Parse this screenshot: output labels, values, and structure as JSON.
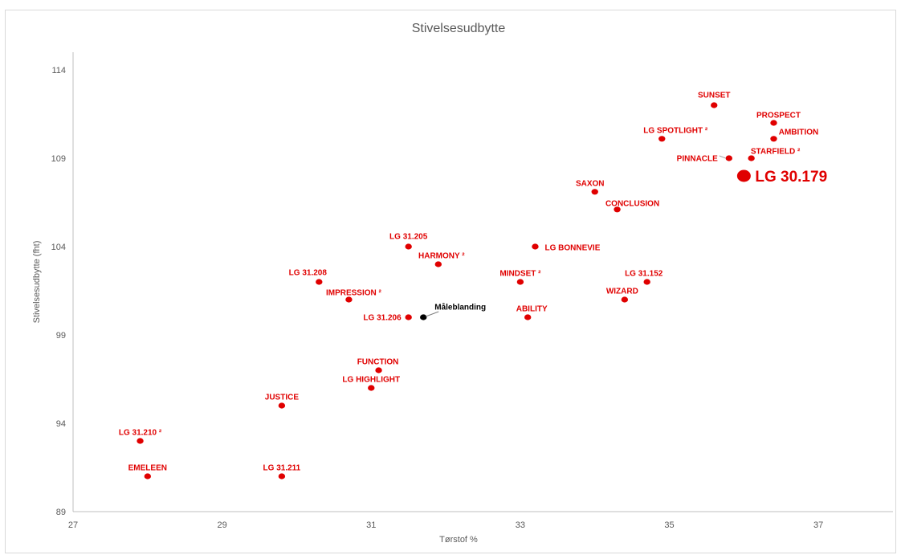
{
  "chart_data": {
    "type": "scatter",
    "title": "Stivelsesudbytte",
    "xlabel": "Tørstof %",
    "ylabel": "Stivelsesudbytte (fht)",
    "xlim": [
      27,
      38
    ],
    "ylim": [
      89,
      115
    ],
    "xticks": [
      "27",
      "29",
      "31",
      "33",
      "35",
      "37"
    ],
    "yticks": [
      "89",
      "94",
      "99",
      "104",
      "109",
      "114"
    ],
    "grid": false,
    "colors": {
      "default": "#e00000",
      "reference": "#000000",
      "highlight": "#e00000"
    },
    "points": [
      {
        "label": "SUNSET",
        "x": 35.6,
        "y": 112.0
      },
      {
        "label": "PROSPECT",
        "x": 36.4,
        "y": 111.0
      },
      {
        "label": "AMBITION",
        "x": 36.4,
        "y": 110.1
      },
      {
        "label": "LG SPOTLIGHT ²",
        "x": 34.9,
        "y": 110.1
      },
      {
        "label": "STARFIELD ²",
        "x": 36.1,
        "y": 109.0
      },
      {
        "label": "PINNACLE",
        "x": 35.8,
        "y": 109.0
      },
      {
        "label": "LG 30.179",
        "x": 36.0,
        "y": 108.0,
        "highlight": true
      },
      {
        "label": "SAXON",
        "x": 34.0,
        "y": 107.1
      },
      {
        "label": "CONCLUSION",
        "x": 34.3,
        "y": 106.1
      },
      {
        "label": "LG 31.205",
        "x": 31.5,
        "y": 104.0
      },
      {
        "label": "LG BONNEVIE",
        "x": 33.2,
        "y": 104.0
      },
      {
        "label": "HARMONY ²",
        "x": 31.9,
        "y": 103.0
      },
      {
        "label": "LG 31.208",
        "x": 30.3,
        "y": 102.0
      },
      {
        "label": "MINDSET ²",
        "x": 33.0,
        "y": 102.0
      },
      {
        "label": "LG 31.152",
        "x": 34.7,
        "y": 102.0
      },
      {
        "label": "IMPRESSION ²",
        "x": 30.7,
        "y": 101.0
      },
      {
        "label": "WIZARD",
        "x": 34.4,
        "y": 101.0
      },
      {
        "label": "LG 31.206",
        "x": 31.5,
        "y": 100.0
      },
      {
        "label": "Måleblanding",
        "x": 31.7,
        "y": 100.0,
        "reference": true
      },
      {
        "label": "ABILITY",
        "x": 33.1,
        "y": 100.0
      },
      {
        "label": "FUNCTION",
        "x": 31.1,
        "y": 97.0
      },
      {
        "label": "LG HIGHLIGHT",
        "x": 31.0,
        "y": 96.0
      },
      {
        "label": "JUSTICE",
        "x": 29.8,
        "y": 95.0
      },
      {
        "label": "LG 31.210 ²",
        "x": 27.9,
        "y": 93.0
      },
      {
        "label": "EMELEEN",
        "x": 28.0,
        "y": 91.0
      },
      {
        "label": "LG 31.211",
        "x": 29.8,
        "y": 91.0
      }
    ]
  }
}
